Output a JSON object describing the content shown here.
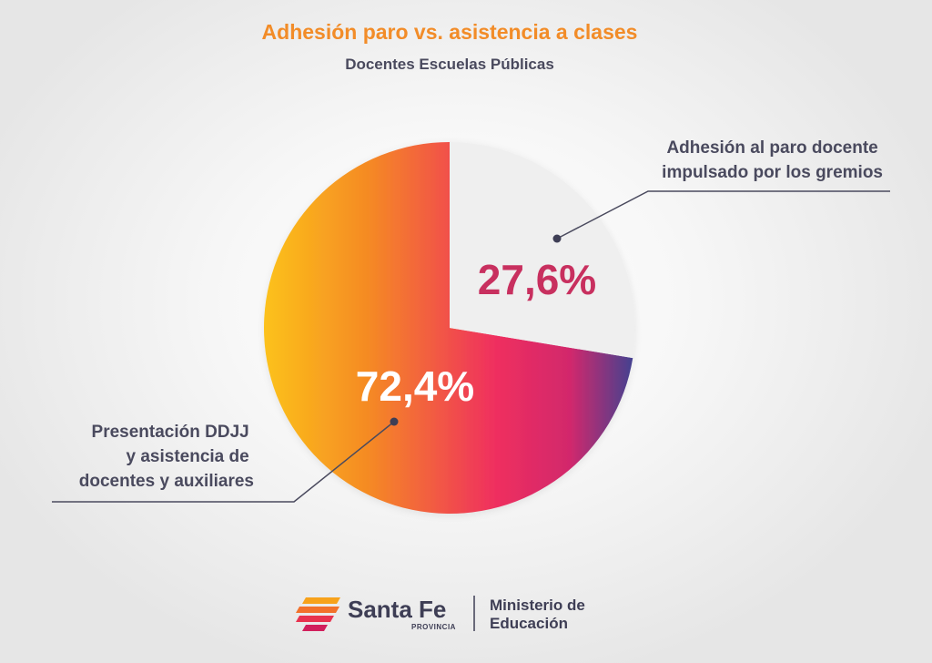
{
  "chart_data": {
    "type": "pie",
    "title": "Adhesión paro vs. asistencia a clases",
    "subtitle": "Docentes Escuelas Públicas",
    "categories": [
      "Adhesión al paro docente impulsado por los gremios",
      "Presentación DDJJ y asistencia de docentes y auxiliares"
    ],
    "values": [
      27.6,
      72.4
    ],
    "value_labels": [
      "27,6%",
      "72,4%"
    ],
    "label_lines": [
      [
        "Adhesión al paro docente",
        "impulsado por los gremios"
      ],
      [
        "Presentación DDJJ",
        "y asistencia de",
        "docentes y auxiliares"
      ]
    ]
  },
  "colors": {
    "title": "#f28c28",
    "text": "#4a4a5e",
    "slice_adhesion": "#efefef",
    "value_adhesion": "#c8305f",
    "value_presentacion": "#ffffff",
    "gradient": [
      "#fcc21b",
      "#f58a24",
      "#ef2f5f",
      "#d2286c",
      "#3a4392"
    ],
    "leader_line": "#4a4a5e"
  },
  "footer": {
    "brand": "Santa Fe",
    "brand_sub": "PROVINCIA",
    "ministry_line1": "Ministerio de",
    "ministry_line2": "Educación",
    "logo_icon": "santa-fe-flag-icon"
  }
}
